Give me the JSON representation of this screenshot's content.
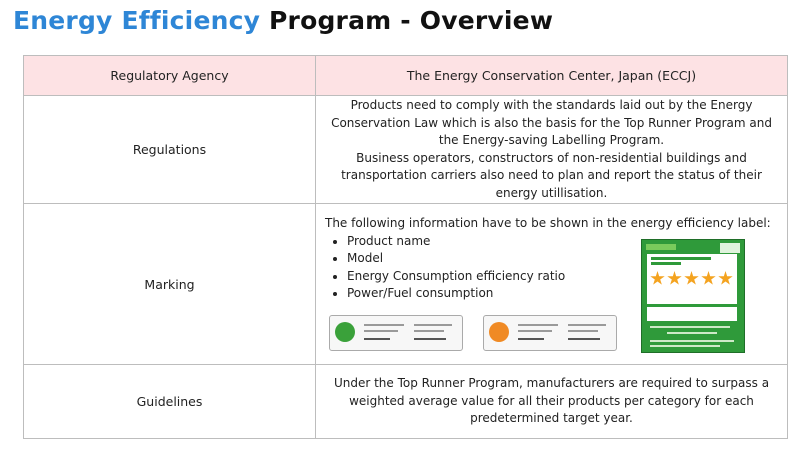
{
  "title": {
    "accent": "Energy Efficiency",
    "rest": " Program - Overview"
  },
  "table": {
    "header": {
      "label": "Regulatory Agency",
      "value": "The Energy Conservation Center, Japan (ECCJ)"
    },
    "regulations": {
      "label": "Regulations",
      "line1": "Products need to comply with the standards laid out by the Energy Conservation Law which is also the basis for the Top Runner Program and the Energy-saving Labelling Program.",
      "line2": "Business operators, constructors of non-residential buildings and transportation carriers also need to plan and report the status of their energy utillisation."
    },
    "marking": {
      "label": "Marking",
      "intro": "The following information have to be shown in the energy efficiency label:",
      "items": [
        "Product name",
        "Model",
        "Energy Consumption efficiency ratio",
        "Power/Fuel consumption"
      ],
      "images": {
        "label1_color": "#3aa13a",
        "label2_color": "#f08a24",
        "big_label_color": "#2f9a3a",
        "star_color": "#f4a320"
      }
    },
    "guidelines": {
      "label": "Guidelines",
      "text": "Under the Top Runner Program, manufacturers are required to surpass a weighted average value for all their products per category for each predetermined target year."
    }
  }
}
